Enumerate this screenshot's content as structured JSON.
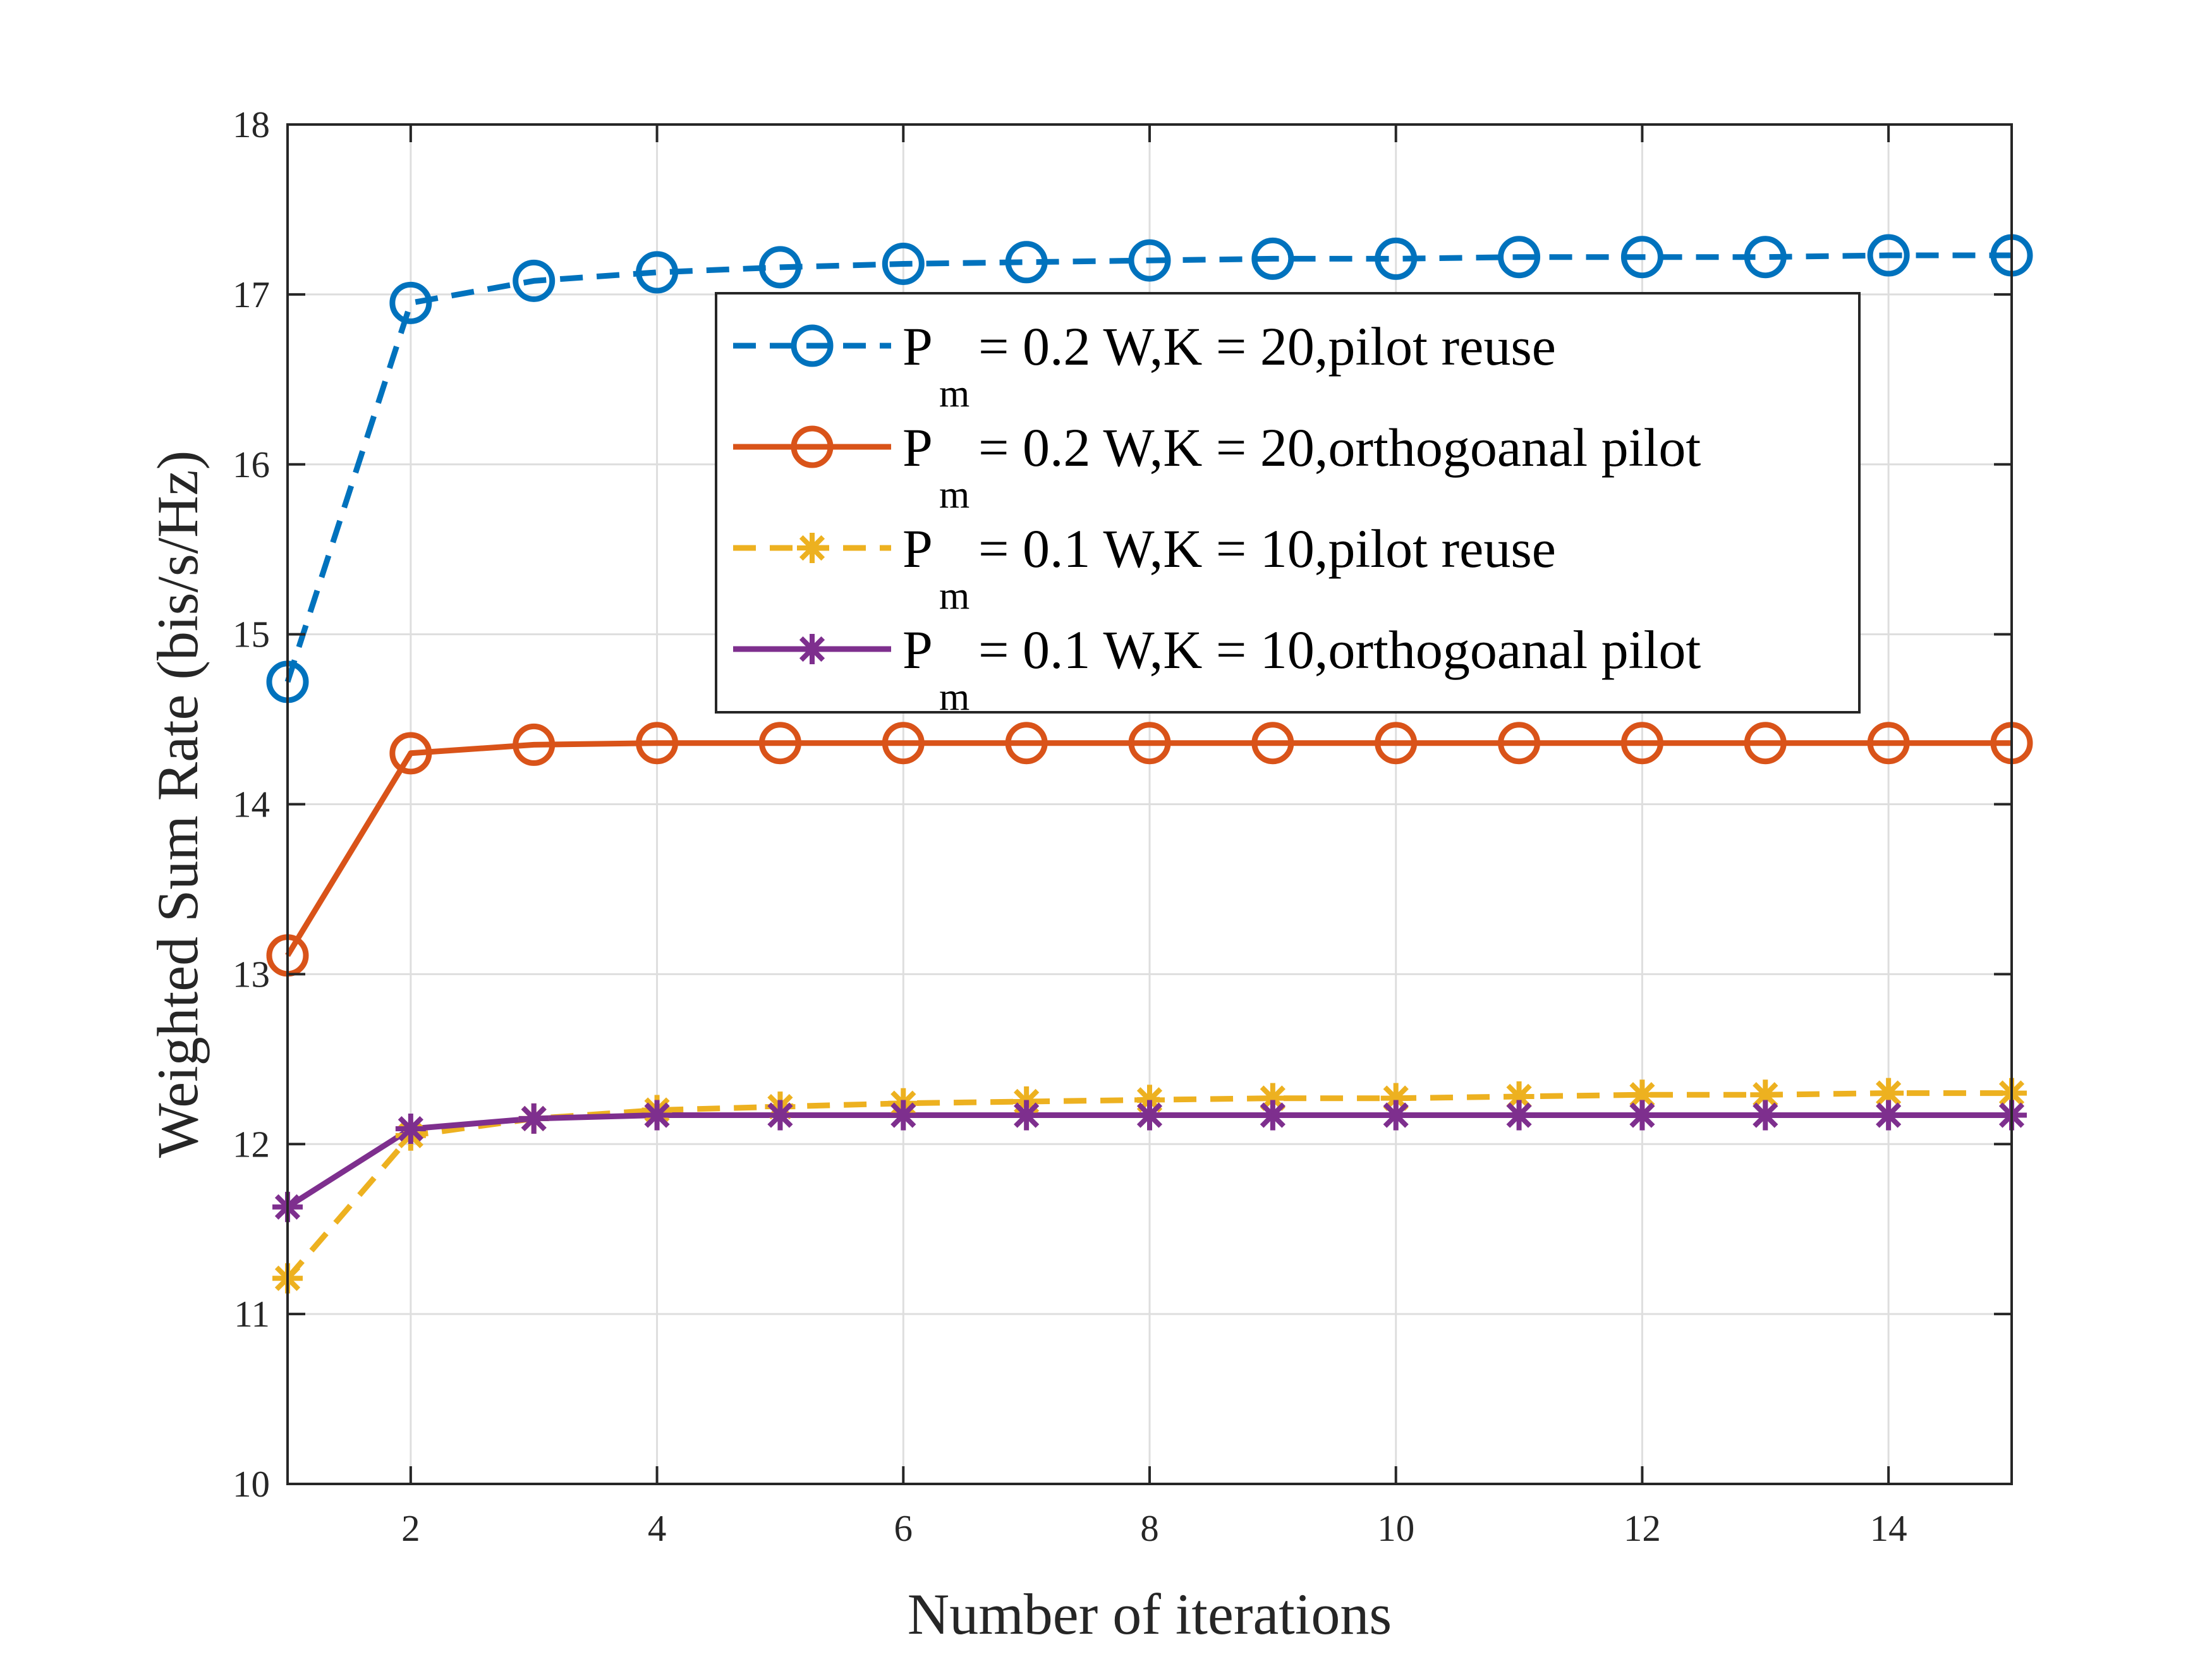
{
  "chart_data": {
    "type": "line",
    "title": "",
    "xlabel": "Number of iterations",
    "ylabel": "Weighted Sum Rate (bis/s/Hz)",
    "xlim": [
      1,
      15
    ],
    "ylim": [
      10,
      18
    ],
    "xticks": [
      2,
      4,
      6,
      8,
      10,
      12,
      14
    ],
    "yticks": [
      10,
      11,
      12,
      13,
      14,
      15,
      16,
      17,
      18
    ],
    "grid": true,
    "legend_position": "top-right",
    "x": [
      1,
      2,
      3,
      4,
      5,
      6,
      7,
      8,
      9,
      10,
      11,
      12,
      13,
      14,
      15
    ],
    "series": [
      {
        "name": "P_m = 0.2 W,K = 20,pilot reuse",
        "legend": {
          "symbol": "P",
          "subscript": "m",
          "rest": " = 0.2 W,K = 20,pilot reuse"
        },
        "color": "#0072BD",
        "line": "dashed",
        "marker": "circle",
        "values": [
          14.72,
          16.95,
          17.08,
          17.13,
          17.16,
          17.18,
          17.19,
          17.2,
          17.21,
          17.21,
          17.22,
          17.22,
          17.22,
          17.23,
          17.23
        ]
      },
      {
        "name": "P_m = 0.2 W,K = 20,orthogoanal pilot",
        "legend": {
          "symbol": "P",
          "subscript": "m",
          "rest": " = 0.2 W,K = 20,orthogoanal pilot"
        },
        "color": "#D95319",
        "line": "solid",
        "marker": "circle",
        "values": [
          13.11,
          14.3,
          14.35,
          14.36,
          14.36,
          14.36,
          14.36,
          14.36,
          14.36,
          14.36,
          14.36,
          14.36,
          14.36,
          14.36,
          14.36
        ]
      },
      {
        "name": "P_m = 0.1 W,K = 10,pilot reuse",
        "legend": {
          "symbol": "P",
          "subscript": "m",
          "rest": " = 0.1 W,K = 10,pilot reuse"
        },
        "color": "#EDB120",
        "line": "dashed",
        "marker": "asterisk",
        "values": [
          11.21,
          12.05,
          12.15,
          12.2,
          12.22,
          12.24,
          12.25,
          12.26,
          12.27,
          12.27,
          12.28,
          12.29,
          12.29,
          12.3,
          12.3
        ]
      },
      {
        "name": "P_m = 0.1 W,K = 10,orthogoanal pilot",
        "legend": {
          "symbol": "P",
          "subscript": "m",
          "rest": " = 0.1 W,K = 10,orthogoanal pilot"
        },
        "color": "#7E2F8E",
        "line": "solid",
        "marker": "asterisk",
        "values": [
          11.63,
          12.09,
          12.15,
          12.17,
          12.17,
          12.17,
          12.17,
          12.17,
          12.17,
          12.17,
          12.17,
          12.17,
          12.17,
          12.17,
          12.17
        ]
      }
    ]
  }
}
